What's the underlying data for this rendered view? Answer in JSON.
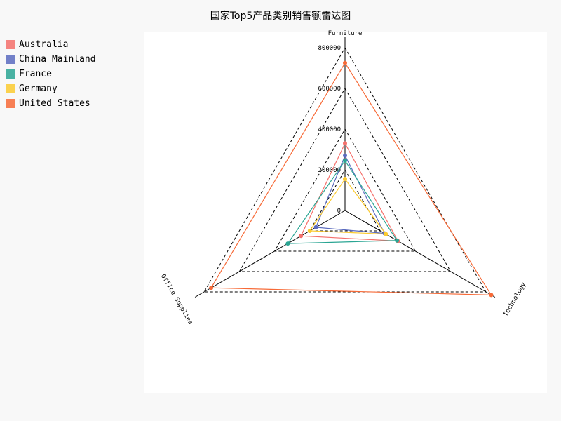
{
  "chart_data": {
    "type": "radar",
    "title": "国家Top5产品类别销售额雷达图",
    "axes": [
      "Furniture",
      "Technology",
      "Office Supplies"
    ],
    "rmax": 800000,
    "ticks": [
      0,
      200000,
      400000,
      600000,
      800000
    ],
    "tick_labels": [
      "0",
      "200000",
      "400000",
      "600000",
      "800000"
    ],
    "grid": true,
    "legend_position": "top-left",
    "series": [
      {
        "name": "Australia",
        "color": "#f5706b",
        "values": [
          330000,
          300000,
          250000
        ]
      },
      {
        "name": "China Mainland",
        "color": "#5b6bbf",
        "values": [
          270000,
          225000,
          165000
        ]
      },
      {
        "name": "France",
        "color": "#2aa593",
        "values": [
          245000,
          295000,
          325000
        ]
      },
      {
        "name": "Germany",
        "color": "#fccb30",
        "values": [
          155000,
          232000,
          200000
        ]
      },
      {
        "name": "United States",
        "color": "#f76a37",
        "values": [
          725000,
          830000,
          760000
        ]
      }
    ]
  }
}
